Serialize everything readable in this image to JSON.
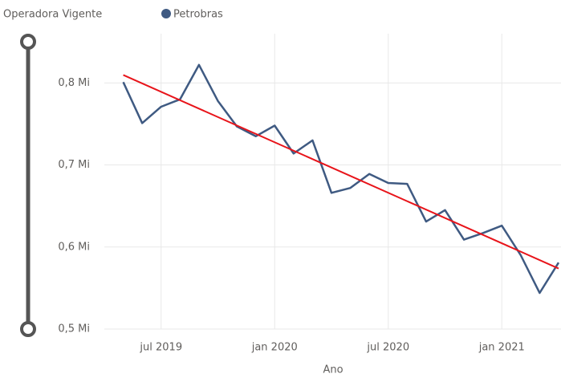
{
  "chart_data": {
    "type": "line",
    "legend_title": "Operadora Vigente",
    "x_label": "Ano",
    "x": [
      "2019-05",
      "2019-06",
      "2019-07",
      "2019-08",
      "2019-09",
      "2019-10",
      "2019-11",
      "2019-12",
      "2020-01",
      "2020-02",
      "2020-03",
      "2020-04",
      "2020-05",
      "2020-06",
      "2020-07",
      "2020-08",
      "2020-09",
      "2020-10",
      "2020-11",
      "2020-12",
      "2021-01",
      "2021-02",
      "2021-03",
      "2021-04"
    ],
    "series": [
      {
        "name": "Petrobras",
        "color": "#3f5a82",
        "values": [
          0.801,
          0.751,
          0.771,
          0.78,
          0.822,
          0.778,
          0.747,
          0.735,
          0.748,
          0.714,
          0.73,
          0.666,
          0.672,
          0.689,
          0.678,
          0.677,
          0.631,
          0.645,
          0.609,
          0.617,
          0.626,
          0.59,
          0.544,
          0.581
        ]
      }
    ],
    "trend_line": true,
    "trend_color": "#e8141a",
    "xlim": [
      "2019-04",
      "2021-04"
    ],
    "xticks": [
      {
        "value": "2019-07",
        "label": "jul 2019"
      },
      {
        "value": "2020-01",
        "label": "jan 2020"
      },
      {
        "value": "2020-07",
        "label": "jul 2020"
      },
      {
        "value": "2021-01",
        "label": "jan 2021"
      }
    ],
    "ylim": [
      0.5,
      0.86
    ],
    "yticks": [
      {
        "value": 0.5,
        "label": "0,5 Mi"
      },
      {
        "value": 0.6,
        "label": "0,6 Mi"
      },
      {
        "value": 0.7,
        "label": "0,7 Mi"
      },
      {
        "value": 0.8,
        "label": "0,8 Mi"
      }
    ],
    "grid": true
  }
}
